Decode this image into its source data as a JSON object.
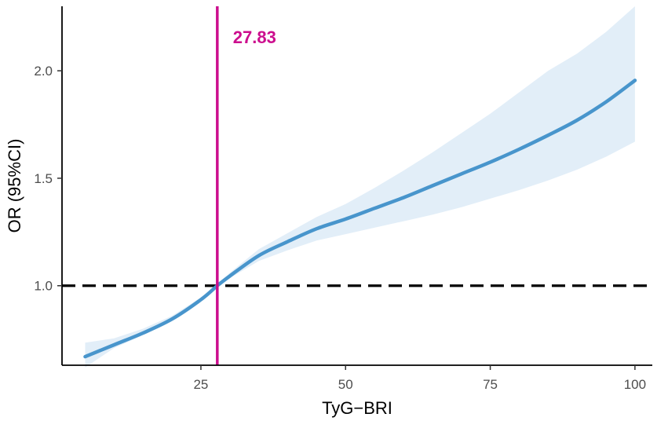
{
  "chart_data": {
    "type": "line",
    "title": "",
    "xlabel": "TyG−BRI",
    "ylabel": "OR (95%CI)",
    "xlim": [
      1,
      103
    ],
    "ylim": [
      0.63,
      2.3
    ],
    "x_ticks": [
      25,
      50,
      75,
      100
    ],
    "x_tick_labels": [
      "25",
      "50",
      "75",
      "100"
    ],
    "y_ticks": [
      1.0,
      1.5,
      2.0
    ],
    "y_tick_labels": [
      "1.0",
      "1.5",
      "2.0"
    ],
    "grid": false,
    "legend": "none",
    "series": [
      {
        "x": [
          5,
          10,
          15,
          20,
          25,
          27.83,
          30,
          35,
          40,
          45,
          50,
          55,
          60,
          65,
          70,
          75,
          80,
          85,
          90,
          95,
          100
        ],
        "y": [
          0.67,
          0.725,
          0.78,
          0.845,
          0.935,
          1.0,
          1.045,
          1.14,
          1.205,
          1.265,
          1.31,
          1.36,
          1.41,
          1.465,
          1.52,
          1.575,
          1.635,
          1.7,
          1.77,
          1.855,
          1.955
        ],
        "lower": [
          0.62,
          0.71,
          0.77,
          0.835,
          0.925,
          0.995,
          1.035,
          1.115,
          1.165,
          1.21,
          1.24,
          1.27,
          1.3,
          1.33,
          1.365,
          1.405,
          1.445,
          1.49,
          1.54,
          1.6,
          1.67
        ],
        "upper": [
          0.735,
          0.755,
          0.8,
          0.86,
          0.945,
          1.005,
          1.06,
          1.17,
          1.245,
          1.32,
          1.38,
          1.455,
          1.535,
          1.62,
          1.71,
          1.8,
          1.9,
          2.0,
          2.08,
          2.18,
          2.3
        ],
        "color": "#4895cc",
        "band_color": "#e2eef8"
      }
    ],
    "reference_lines": {
      "horizontal": {
        "y": 1.0,
        "style": "dashed",
        "color": "#000000"
      },
      "vertical": {
        "x": 27.83,
        "color": "#cc0e8e",
        "label": "27.83"
      }
    }
  }
}
